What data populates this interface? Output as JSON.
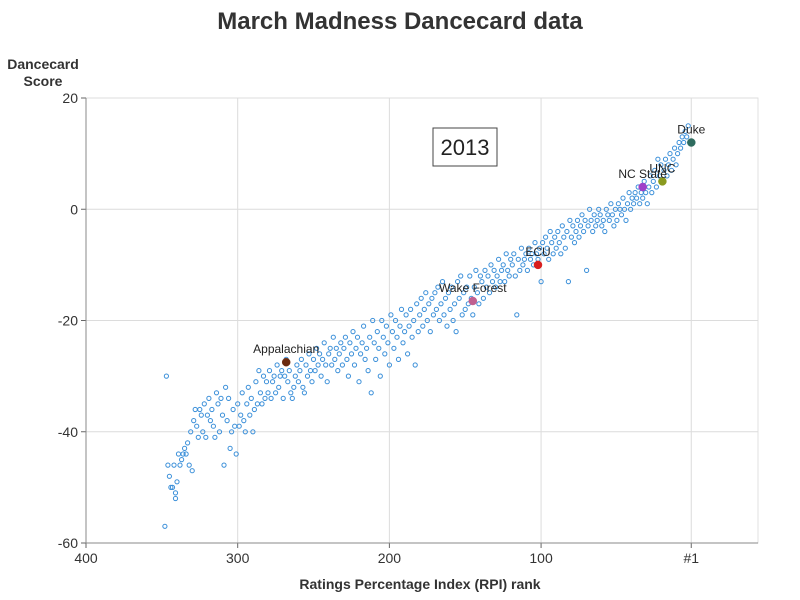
{
  "chart_data": {
    "type": "scatter",
    "title": "March Madness Dancecard data",
    "xlabel": "Ratings Percentage Index (RPI) rank",
    "ylabel_lines": [
      "Dancecard",
      "Score"
    ],
    "xlim": [
      400,
      -43
    ],
    "ylim": [
      -60,
      20
    ],
    "x_ticks": [
      {
        "value": 400,
        "label": "400"
      },
      {
        "value": 300,
        "label": "300"
      },
      {
        "value": 200,
        "label": "200"
      },
      {
        "value": 100,
        "label": "100"
      },
      {
        "value": 1,
        "label": "#1"
      }
    ],
    "y_ticks": [
      {
        "value": 20,
        "label": "20"
      },
      {
        "value": 0,
        "label": "0"
      },
      {
        "value": -20,
        "label": "-20"
      },
      {
        "value": -40,
        "label": "-40"
      },
      {
        "value": -60,
        "label": "-60"
      }
    ],
    "grid": true,
    "year_annotation": "2013",
    "background_series": {
      "color": "#3a8fd9",
      "marker": "open-circle",
      "points": [
        [
          348,
          -57
        ],
        [
          347,
          -30
        ],
        [
          346,
          -46
        ],
        [
          345,
          -48
        ],
        [
          344,
          -50
        ],
        [
          343,
          -50
        ],
        [
          342,
          -46
        ],
        [
          341,
          -51
        ],
        [
          341,
          -52
        ],
        [
          340,
          -49
        ],
        [
          339,
          -44
        ],
        [
          338,
          -46
        ],
        [
          337,
          -45
        ],
        [
          336,
          -44
        ],
        [
          335,
          -43
        ],
        [
          334,
          -44
        ],
        [
          333,
          -42
        ],
        [
          332,
          -46
        ],
        [
          331,
          -40
        ],
        [
          330,
          -47
        ],
        [
          329,
          -38
        ],
        [
          328,
          -36
        ],
        [
          327,
          -39
        ],
        [
          326,
          -41
        ],
        [
          325,
          -36
        ],
        [
          324,
          -37
        ],
        [
          323,
          -40
        ],
        [
          322,
          -35
        ],
        [
          321,
          -41
        ],
        [
          320,
          -37
        ],
        [
          319,
          -34
        ],
        [
          318,
          -38
        ],
        [
          317,
          -36
        ],
        [
          316,
          -39
        ],
        [
          315,
          -41
        ],
        [
          314,
          -33
        ],
        [
          313,
          -35
        ],
        [
          312,
          -40
        ],
        [
          311,
          -34
        ],
        [
          310,
          -37
        ],
        [
          309,
          -46
        ],
        [
          308,
          -32
        ],
        [
          307,
          -38
        ],
        [
          306,
          -34
        ],
        [
          305,
          -43
        ],
        [
          304,
          -40
        ],
        [
          303,
          -36
        ],
        [
          302,
          -39
        ],
        [
          301,
          -44
        ],
        [
          300,
          -35
        ],
        [
          299,
          -39
        ],
        [
          298,
          -37
        ],
        [
          297,
          -33
        ],
        [
          296,
          -38
        ],
        [
          295,
          -40
        ],
        [
          294,
          -35
        ],
        [
          293,
          -32
        ],
        [
          292,
          -37
        ],
        [
          291,
          -34
        ],
        [
          290,
          -40
        ],
        [
          289,
          -36
        ],
        [
          288,
          -31
        ],
        [
          287,
          -35
        ],
        [
          286,
          -29
        ],
        [
          285,
          -33
        ],
        [
          284,
          -35
        ],
        [
          283,
          -30
        ],
        [
          282,
          -34
        ],
        [
          281,
          -31
        ],
        [
          280,
          -33
        ],
        [
          279,
          -29
        ],
        [
          278,
          -34
        ],
        [
          277,
          -31
        ],
        [
          276,
          -30
        ],
        [
          275,
          -33
        ],
        [
          274,
          -28
        ],
        [
          273,
          -32
        ],
        [
          272,
          -30
        ],
        [
          271,
          -29
        ],
        [
          270,
          -34
        ],
        [
          269,
          -30
        ],
        [
          268,
          -27
        ],
        [
          267,
          -31
        ],
        [
          266,
          -29
        ],
        [
          265,
          -33
        ],
        [
          264,
          -34
        ],
        [
          263,
          -32
        ],
        [
          262,
          -30
        ],
        [
          261,
          -28
        ],
        [
          260,
          -31
        ],
        [
          259,
          -29
        ],
        [
          258,
          -27
        ],
        [
          257,
          -32
        ],
        [
          256,
          -33
        ],
        [
          255,
          -28
        ],
        [
          254,
          -30
        ],
        [
          253,
          -26
        ],
        [
          252,
          -29
        ],
        [
          251,
          -31
        ],
        [
          250,
          -27
        ],
        [
          249,
          -29
        ],
        [
          248,
          -25
        ],
        [
          247,
          -28
        ],
        [
          246,
          -26
        ],
        [
          245,
          -30
        ],
        [
          244,
          -27
        ],
        [
          243,
          -24
        ],
        [
          242,
          -28
        ],
        [
          241,
          -31
        ],
        [
          240,
          -26
        ],
        [
          239,
          -25
        ],
        [
          238,
          -28
        ],
        [
          237,
          -23
        ],
        [
          236,
          -27
        ],
        [
          235,
          -25
        ],
        [
          234,
          -29
        ],
        [
          233,
          -26
        ],
        [
          232,
          -24
        ],
        [
          231,
          -28
        ],
        [
          230,
          -25
        ],
        [
          229,
          -23
        ],
        [
          228,
          -27
        ],
        [
          227,
          -30
        ],
        [
          226,
          -24
        ],
        [
          225,
          -26
        ],
        [
          224,
          -22
        ],
        [
          223,
          -28
        ],
        [
          222,
          -25
        ],
        [
          221,
          -23
        ],
        [
          220,
          -31
        ],
        [
          219,
          -26
        ],
        [
          218,
          -24
        ],
        [
          217,
          -21
        ],
        [
          216,
          -27
        ],
        [
          215,
          -25
        ],
        [
          214,
          -29
        ],
        [
          213,
          -23
        ],
        [
          212,
          -33
        ],
        [
          211,
          -20
        ],
        [
          210,
          -24
        ],
        [
          209,
          -27
        ],
        [
          208,
          -22
        ],
        [
          207,
          -25
        ],
        [
          206,
          -30
        ],
        [
          205,
          -20
        ],
        [
          204,
          -23
        ],
        [
          203,
          -26
        ],
        [
          202,
          -21
        ],
        [
          201,
          -24
        ],
        [
          200,
          -28
        ],
        [
          199,
          -19
        ],
        [
          198,
          -22
        ],
        [
          197,
          -25
        ],
        [
          196,
          -20
        ],
        [
          195,
          -23
        ],
        [
          194,
          -27
        ],
        [
          193,
          -21
        ],
        [
          192,
          -18
        ],
        [
          191,
          -24
        ],
        [
          190,
          -22
        ],
        [
          189,
          -19
        ],
        [
          188,
          -26
        ],
        [
          187,
          -21
        ],
        [
          186,
          -18
        ],
        [
          185,
          -23
        ],
        [
          184,
          -20
        ],
        [
          183,
          -28
        ],
        [
          182,
          -17
        ],
        [
          181,
          -22
        ],
        [
          180,
          -19
        ],
        [
          179,
          -16
        ],
        [
          178,
          -21
        ],
        [
          177,
          -18
        ],
        [
          176,
          -15
        ],
        [
          175,
          -20
        ],
        [
          174,
          -17
        ],
        [
          173,
          -22
        ],
        [
          172,
          -16
        ],
        [
          171,
          -19
        ],
        [
          170,
          -15
        ],
        [
          169,
          -18
        ],
        [
          168,
          -14
        ],
        [
          167,
          -20
        ],
        [
          166,
          -17
        ],
        [
          165,
          -13
        ],
        [
          164,
          -19
        ],
        [
          163,
          -16
        ],
        [
          162,
          -21
        ],
        [
          161,
          -15
        ],
        [
          160,
          -18
        ],
        [
          159,
          -14
        ],
        [
          158,
          -20
        ],
        [
          157,
          -17
        ],
        [
          156,
          -22
        ],
        [
          155,
          -13
        ],
        [
          154,
          -16
        ],
        [
          153,
          -12
        ],
        [
          152,
          -19
        ],
        [
          151,
          -15
        ],
        [
          150,
          -18
        ],
        [
          149,
          -14
        ],
        [
          148,
          -17
        ],
        [
          147,
          -12
        ],
        [
          146,
          -16
        ],
        [
          145,
          -19
        ],
        [
          144,
          -14
        ],
        [
          143,
          -11
        ],
        [
          142,
          -15
        ],
        [
          141,
          -17
        ],
        [
          140,
          -12
        ],
        [
          139,
          -13
        ],
        [
          138,
          -16
        ],
        [
          137,
          -11
        ],
        [
          136,
          -14
        ],
        [
          135,
          -12
        ],
        [
          134,
          -15
        ],
        [
          133,
          -10
        ],
        [
          132,
          -13
        ],
        [
          131,
          -11
        ],
        [
          130,
          -14
        ],
        [
          129,
          -12
        ],
        [
          128,
          -9
        ],
        [
          127,
          -13
        ],
        [
          126,
          -11
        ],
        [
          125,
          -10
        ],
        [
          124,
          -13
        ],
        [
          123,
          -8
        ],
        [
          122,
          -11
        ],
        [
          121,
          -12
        ],
        [
          120,
          -9
        ],
        [
          119,
          -10
        ],
        [
          118,
          -8
        ],
        [
          117,
          -12
        ],
        [
          116,
          -19
        ],
        [
          115,
          -9
        ],
        [
          114,
          -11
        ],
        [
          113,
          -7
        ],
        [
          112,
          -10
        ],
        [
          111,
          -9
        ],
        [
          110,
          -8
        ],
        [
          109,
          -11
        ],
        [
          108,
          -7
        ],
        [
          107,
          -9
        ],
        [
          106,
          -8
        ],
        [
          105,
          -10
        ],
        [
          104,
          -6
        ],
        [
          103,
          -8
        ],
        [
          102,
          -9
        ],
        [
          101,
          -7
        ],
        [
          100,
          -13
        ],
        [
          99,
          -6
        ],
        [
          98,
          -8
        ],
        [
          97,
          -5
        ],
        [
          96,
          -7
        ],
        [
          95,
          -9
        ],
        [
          94,
          -4
        ],
        [
          93,
          -6
        ],
        [
          92,
          -8
        ],
        [
          91,
          -5
        ],
        [
          90,
          -7
        ],
        [
          89,
          -4
        ],
        [
          88,
          -6
        ],
        [
          87,
          -8
        ],
        [
          86,
          -3
        ],
        [
          85,
          -5
        ],
        [
          84,
          -7
        ],
        [
          83,
          -4
        ],
        [
          82,
          -13
        ],
        [
          81,
          -2
        ],
        [
          80,
          -5
        ],
        [
          79,
          -3
        ],
        [
          78,
          -6
        ],
        [
          77,
          -4
        ],
        [
          76,
          -2
        ],
        [
          75,
          -5
        ],
        [
          74,
          -3
        ],
        [
          73,
          -1
        ],
        [
          72,
          -4
        ],
        [
          71,
          -2
        ],
        [
          70,
          -11
        ],
        [
          69,
          -3
        ],
        [
          68,
          0
        ],
        [
          67,
          -2
        ],
        [
          66,
          -4
        ],
        [
          65,
          -1
        ],
        [
          64,
          -3
        ],
        [
          63,
          -2
        ],
        [
          62,
          0
        ],
        [
          61,
          -1
        ],
        [
          60,
          -3
        ],
        [
          59,
          -2
        ],
        [
          58,
          -4
        ],
        [
          57,
          0
        ],
        [
          56,
          -1
        ],
        [
          55,
          -2
        ],
        [
          54,
          1
        ],
        [
          53,
          -1
        ],
        [
          52,
          -3
        ],
        [
          51,
          0
        ],
        [
          50,
          -2
        ],
        [
          49,
          1
        ],
        [
          48,
          0
        ],
        [
          47,
          -1
        ],
        [
          46,
          2
        ],
        [
          45,
          0
        ],
        [
          44,
          -2
        ],
        [
          43,
          1
        ],
        [
          42,
          3
        ],
        [
          41,
          0
        ],
        [
          40,
          2
        ],
        [
          39,
          1
        ],
        [
          38,
          3
        ],
        [
          37,
          2
        ],
        [
          36,
          4
        ],
        [
          35,
          1
        ],
        [
          34,
          3
        ],
        [
          33,
          2
        ],
        [
          32,
          5
        ],
        [
          31,
          3
        ],
        [
          30,
          1
        ],
        [
          29,
          4
        ],
        [
          28,
          6
        ],
        [
          27,
          3
        ],
        [
          26,
          5
        ],
        [
          25,
          7
        ],
        [
          24,
          4
        ],
        [
          23,
          9
        ],
        [
          22,
          6
        ],
        [
          21,
          8
        ],
        [
          20,
          5
        ],
        [
          19,
          7
        ],
        [
          18,
          9
        ],
        [
          17,
          6
        ],
        [
          16,
          8
        ],
        [
          15,
          10
        ],
        [
          14,
          7
        ],
        [
          13,
          9
        ],
        [
          12,
          11
        ],
        [
          11,
          8
        ],
        [
          10,
          10
        ],
        [
          9,
          12
        ],
        [
          8,
          11
        ],
        [
          7,
          13
        ],
        [
          6,
          12
        ],
        [
          5,
          14
        ],
        [
          4,
          13
        ],
        [
          3,
          15
        ]
      ]
    },
    "highlighted_points": [
      {
        "label": "Duke",
        "x": 1,
        "y": 12,
        "color": "#2e6b5e"
      },
      {
        "label": "UNC",
        "x": 20,
        "y": 5,
        "color": "#8a9a1f"
      },
      {
        "label": "NC State",
        "x": 33,
        "y": 4,
        "color": "#a040c8"
      },
      {
        "label": "ECU",
        "x": 102,
        "y": -10,
        "color": "#d81e1e"
      },
      {
        "label": "Wake Forest",
        "x": 145,
        "y": -16.5,
        "color": "#c06090"
      },
      {
        "label": "Appalachian",
        "x": 268,
        "y": -27.5,
        "color": "#6b2a0e"
      }
    ]
  }
}
